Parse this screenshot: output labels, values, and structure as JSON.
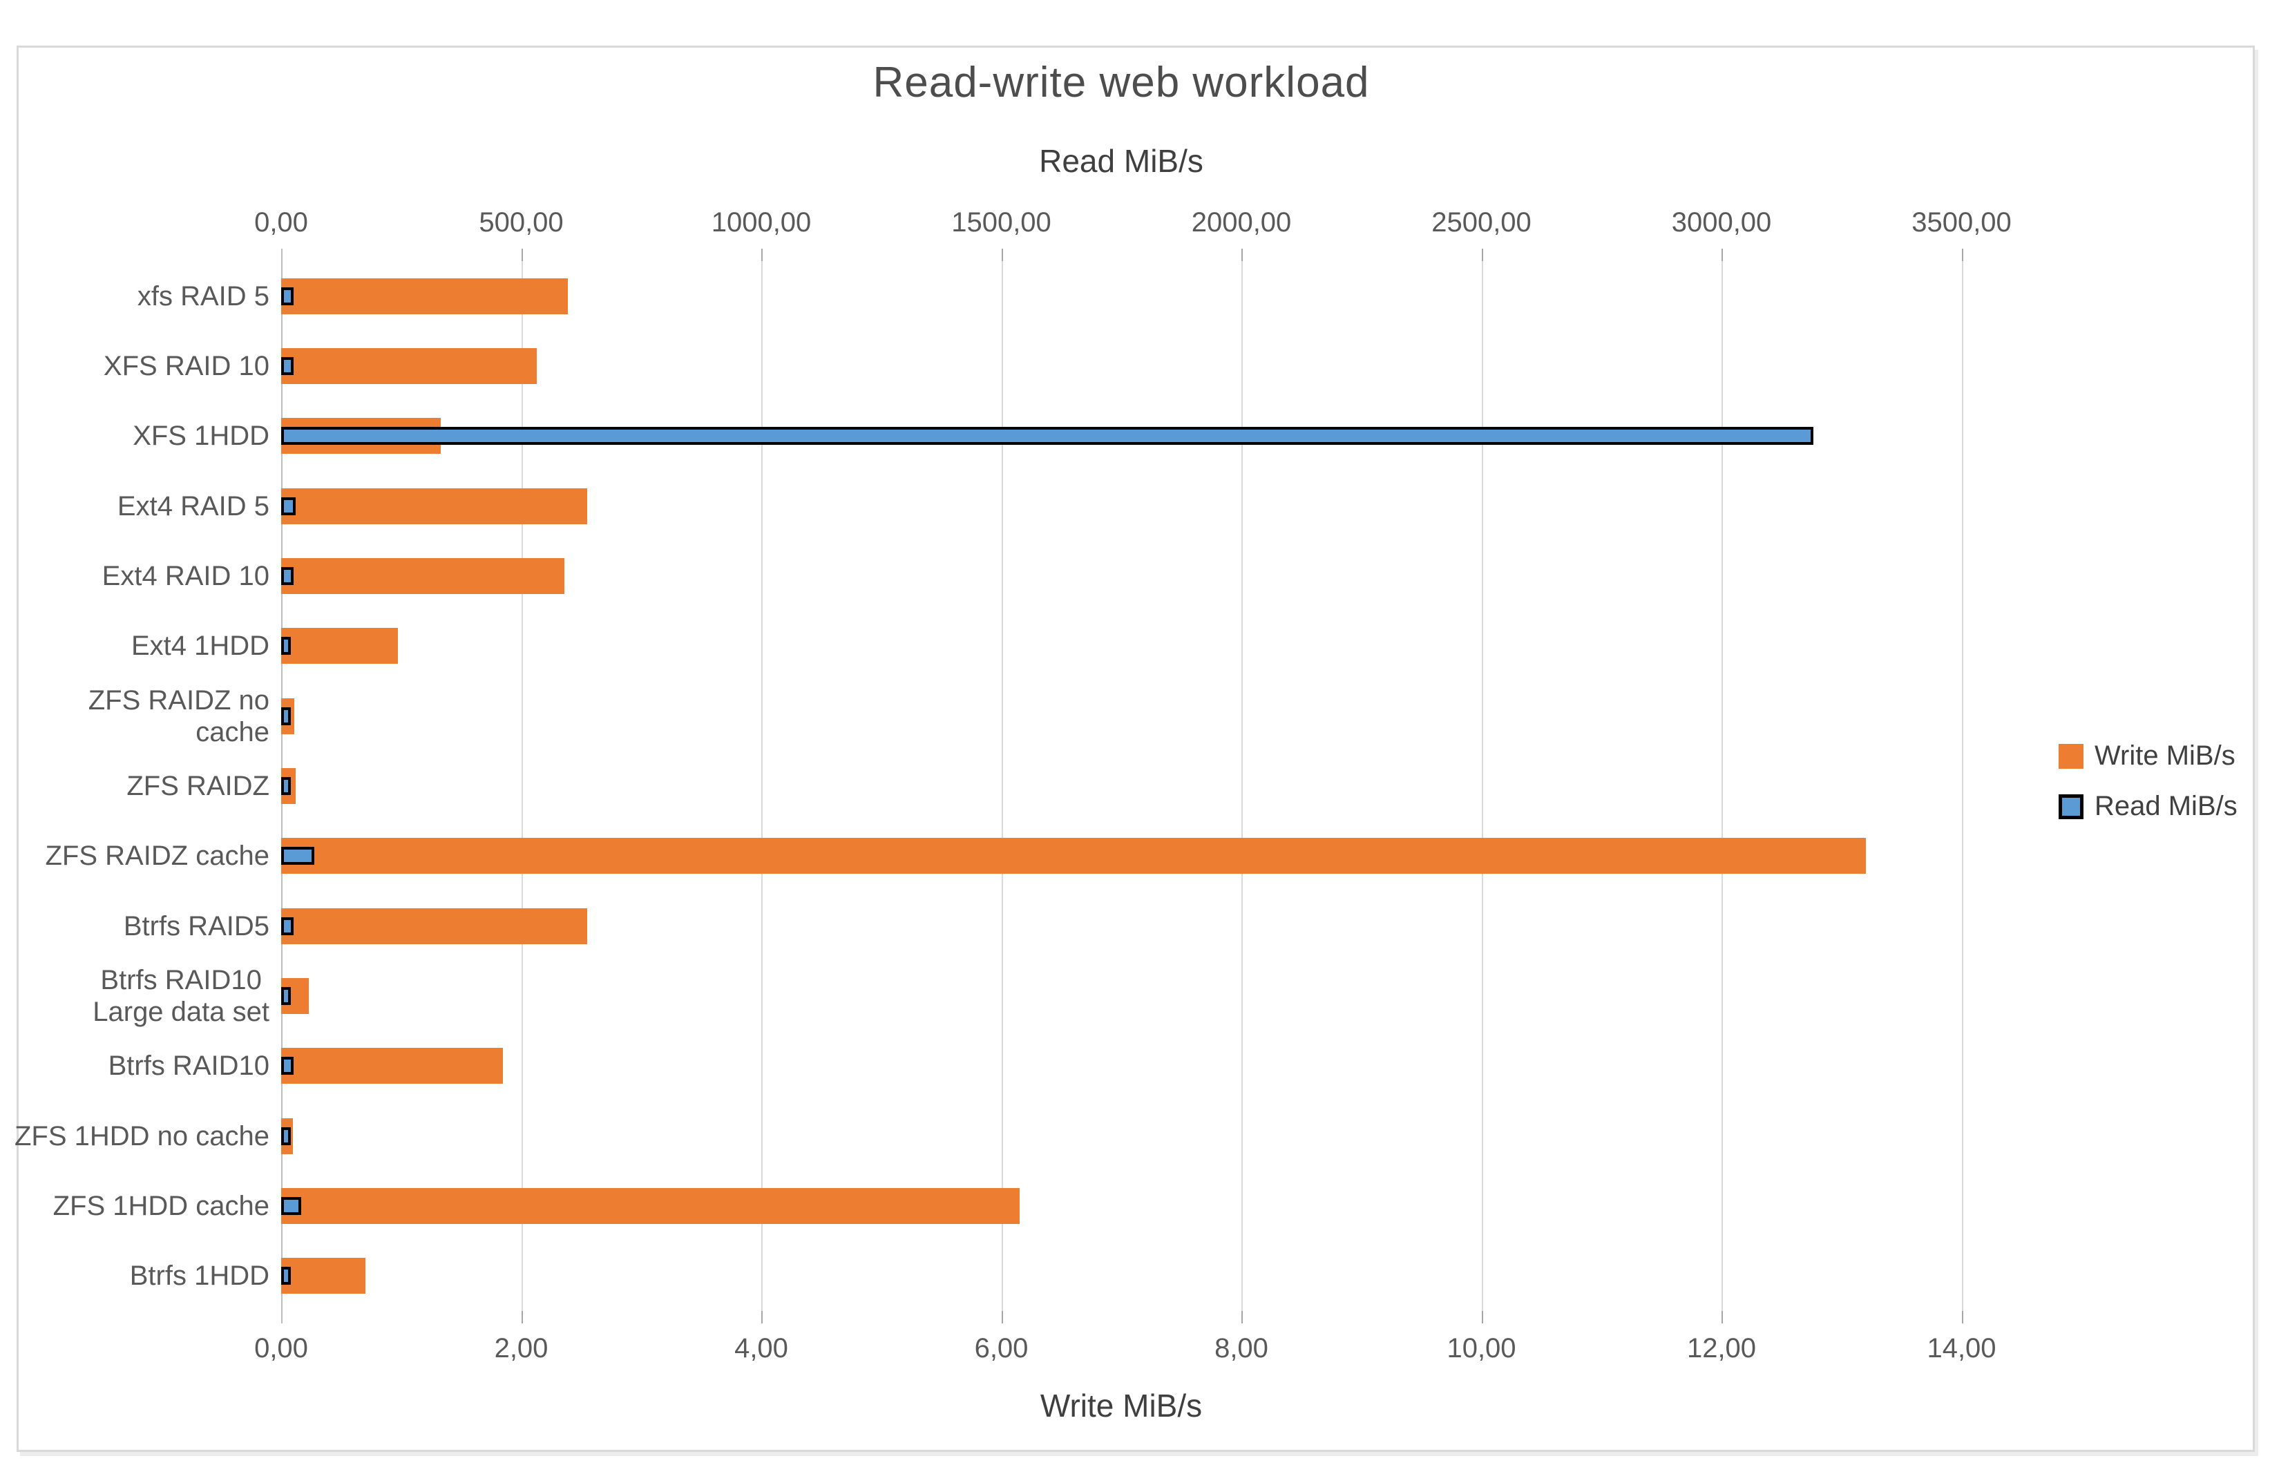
{
  "chart_data": {
    "type": "bar",
    "orientation": "horizontal",
    "title": "Read-write web workload",
    "top_axis": {
      "label": "Read MiB/s",
      "tick_labels": [
        "0,00",
        "500,00",
        "1000,00",
        "1500,00",
        "2000,00",
        "2500,00",
        "3000,00",
        "3500,00"
      ],
      "range": [
        0,
        3500
      ]
    },
    "bottom_axis": {
      "label": "Write MiB/s",
      "tick_labels": [
        "0,00",
        "2,00",
        "4,00",
        "6,00",
        "8,00",
        "10,00",
        "12,00",
        "14,00"
      ],
      "range": [
        0,
        14
      ]
    },
    "categories": [
      "xfs  RAID 5",
      "XFS  RAID 10",
      "XFS 1HDD",
      "Ext4  RAID 5",
      "Ext4  RAID 10",
      "Ext4 1HDD",
      "ZFS RAIDZ no cache",
      "ZFS RAIDZ",
      "ZFS RAIDZ cache",
      "Btrfs RAID5",
      "Btrfs RAID10\nLarge data set",
      "Btrfs RAID10",
      "ZFS 1HDD no cache",
      "ZFS 1HDD cache",
      "Btrfs 1HDD"
    ],
    "series": [
      {
        "name": "Write MiB/s",
        "axis": "bottom",
        "color": "#ED7D31",
        "values": [
          2.39,
          2.13,
          1.33,
          2.55,
          2.36,
          0.97,
          0.11,
          0.12,
          13.2,
          2.55,
          0.23,
          1.85,
          0.1,
          6.15,
          0.7
        ]
      },
      {
        "name": "Read MiB/s",
        "axis": "top",
        "color": "#5B9BD5",
        "border_color": "#000000",
        "values": [
          15,
          15,
          3180,
          18,
          15,
          8,
          8,
          8,
          57,
          15,
          8,
          15,
          8,
          30,
          8
        ]
      }
    ],
    "legend": {
      "position": "right",
      "entries": [
        "Write MiB/s",
        "Read MiB/s"
      ]
    },
    "grid": true
  },
  "colors": {
    "write_bar": "#ED7D31",
    "read_bar_fill": "#5B9BD5",
    "read_bar_border": "#000000",
    "gridline": "#d9d9d9",
    "axis_line": "#bfbfbf",
    "text": "#595959",
    "frame_border": "#d9d9d9"
  }
}
